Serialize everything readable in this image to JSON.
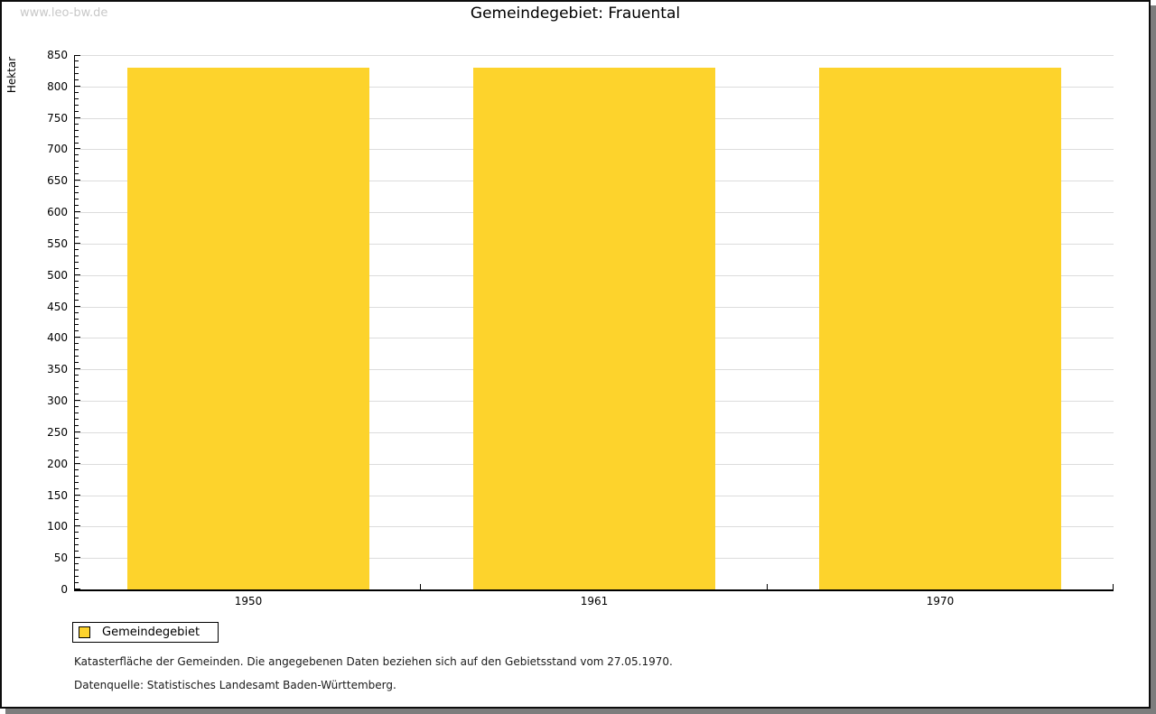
{
  "watermark": "www.leo-bw.de",
  "chart_data": {
    "type": "bar",
    "title": "Gemeindegebiet: Frauental",
    "categories": [
      "1950",
      "1961",
      "1970"
    ],
    "series": [
      {
        "name": "Gemeindegebiet",
        "values": [
          830,
          830,
          830
        ]
      }
    ],
    "xlabel": "",
    "ylabel": "Hektar",
    "ylim": [
      0,
      850
    ],
    "ytick_major": 50,
    "ytick_minor": 10,
    "bar_color": "#FDD32C",
    "bar_width_fraction": 0.7,
    "grid": true,
    "gridline_color": "#DCDCDC",
    "legend_position": "bottom-left"
  },
  "footnotes": [
    "Katasterfläche der Gemeinden. Die angegebenen Daten beziehen sich auf den Gebietsstand vom 27.05.1970.",
    "Datenquelle: Statistisches Landesamt Baden-Württemberg."
  ]
}
